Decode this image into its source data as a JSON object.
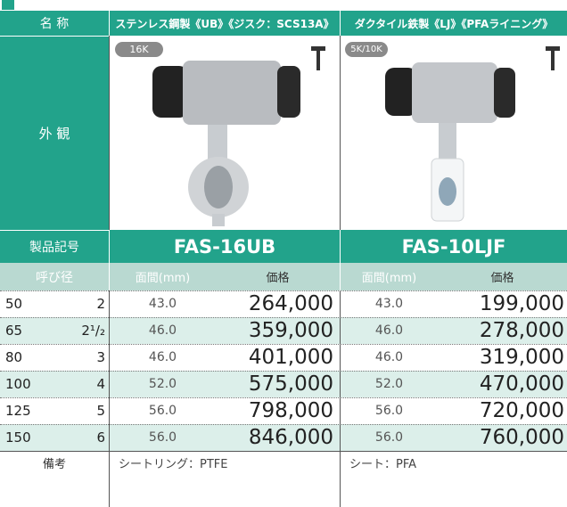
{
  "header": {
    "label": "名 称",
    "columns": [
      "ステンレス鋼製《UB》《ジスク：SCS13A》",
      "ダクタイル鉄製《LJ》《PFAライニング》"
    ]
  },
  "appearance": {
    "label": "外 観",
    "badges": [
      "16K",
      "5K/10K"
    ]
  },
  "model": {
    "label": "製品記号",
    "values": [
      "FAS-16UB",
      "FAS-10LJF"
    ]
  },
  "subheader": {
    "label": "呼び径",
    "columns": [
      "面間(mm)",
      "価格",
      "面間(mm)",
      "価格"
    ]
  },
  "rows": [
    [
      "50",
      "2",
      "43.0",
      "264,000",
      "43.0",
      "199,000"
    ],
    [
      "65",
      "2¹/₂",
      "46.0",
      "359,000",
      "46.0",
      "278,000"
    ],
    [
      "80",
      "3",
      "46.0",
      "401,000",
      "46.0",
      "319,000"
    ],
    [
      "100",
      "4",
      "52.0",
      "575,000",
      "52.0",
      "470,000"
    ],
    [
      "125",
      "5",
      "56.0",
      "798,000",
      "56.0",
      "720,000"
    ],
    [
      "150",
      "6",
      "56.0",
      "846,000",
      "56.0",
      "760,000"
    ]
  ],
  "notes": {
    "label": "備考",
    "values": [
      "シートリング：PTFE",
      "シート：PFA"
    ]
  }
}
